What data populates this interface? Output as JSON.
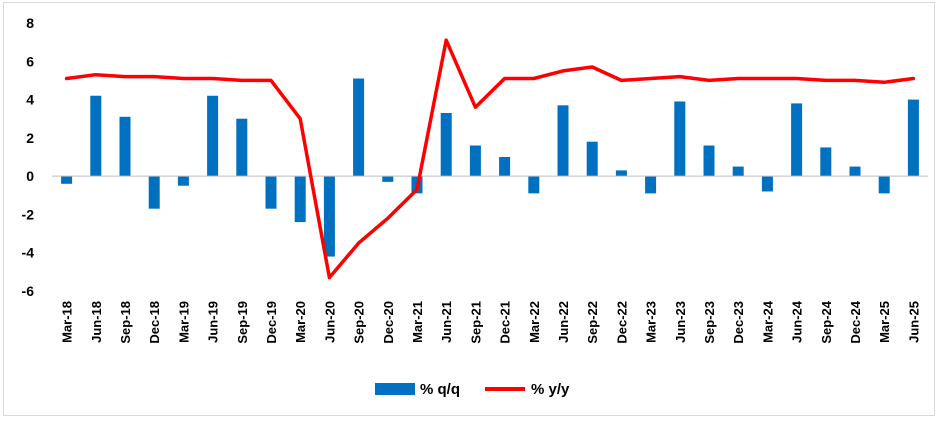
{
  "chart_data": {
    "type": "bar+line",
    "title": "",
    "xlabel": "",
    "ylabel": "",
    "ylim": [
      -6,
      8
    ],
    "yticks": [
      8,
      6,
      4,
      2,
      0,
      -2,
      -4,
      -6
    ],
    "grid": false,
    "legend_position": "bottom",
    "categories": [
      "Mar-18",
      "Jun-18",
      "Sep-18",
      "Dec-18",
      "Mar-19",
      "Jun-19",
      "Sep-19",
      "Dec-19",
      "Mar-20",
      "Jun-20",
      "Sep-20",
      "Dec-20",
      "Mar-21",
      "Jun-21",
      "Sep-21",
      "Dec-21",
      "Mar-22",
      "Jun-22",
      "Sep-22",
      "Dec-22",
      "Mar-23",
      "Jun-23",
      "Sep-23",
      "Dec-23",
      "Mar-24",
      "Jun-24",
      "Sep-24",
      "Dec-24",
      "Mar-25",
      "Jun-25"
    ],
    "series": [
      {
        "name": "% q/q",
        "type": "bar",
        "color": "#0070C0",
        "values": [
          -0.4,
          4.2,
          3.1,
          -1.7,
          -0.5,
          4.2,
          3.0,
          -1.7,
          -2.4,
          -4.2,
          5.1,
          -0.3,
          -0.9,
          3.3,
          1.6,
          1.0,
          -0.9,
          3.7,
          1.8,
          0.3,
          -0.9,
          3.9,
          1.6,
          0.5,
          -0.8,
          3.8,
          1.5,
          0.5,
          -0.9,
          4.0
        ]
      },
      {
        "name": "% y/y",
        "type": "line",
        "color": "#FF0000",
        "values": [
          5.1,
          5.3,
          5.2,
          5.2,
          5.1,
          5.1,
          5.0,
          5.0,
          3.0,
          -5.3,
          -3.5,
          -2.2,
          -0.7,
          7.1,
          3.6,
          5.1,
          5.1,
          5.5,
          5.7,
          5.0,
          5.1,
          5.2,
          5.0,
          5.1,
          5.1,
          5.1,
          5.0,
          5.0,
          4.9,
          5.1
        ]
      }
    ]
  }
}
